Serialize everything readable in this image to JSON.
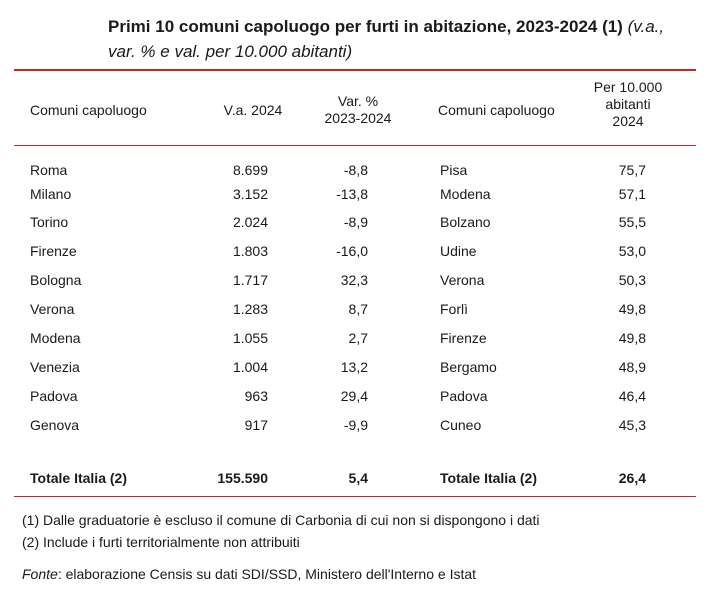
{
  "title": {
    "bold_text": "Primi 10 comuni capoluogo per furti in abitazione, 2023-2024 (1)",
    "italic_line1": " (v.a.,",
    "italic_line2": "var. % e val. per 10.000 abitanti)"
  },
  "headers": {
    "col1": "Comuni capoluogo",
    "col2": "V.a. 2024",
    "col3_line1": "Var. %",
    "col3_line2": "2023-2024",
    "col4": "Comuni capoluogo",
    "col5_line1": "Per 10.000",
    "col5_line2": "abitanti",
    "col5_line3": "2024"
  },
  "rows": [
    {
      "city": "Roma",
      "va": "8.699",
      "var": "-8,8",
      "city2": "Pisa",
      "per10k": "75,7"
    },
    {
      "city": "Milano",
      "va": "3.152",
      "var": "-13,8",
      "city2": "Modena",
      "per10k": "57,1"
    },
    {
      "city": "Torino",
      "va": "2.024",
      "var": "-8,9",
      "city2": "Bolzano",
      "per10k": "55,5"
    },
    {
      "city": "Firenze",
      "va": "1.803",
      "var": "-16,0",
      "city2": "Udine",
      "per10k": "53,0"
    },
    {
      "city": "Bologna",
      "va": "1.717",
      "var": "32,3",
      "city2": "Verona",
      "per10k": "50,3"
    },
    {
      "city": "Verona",
      "va": "1.283",
      "var": "8,7",
      "city2": "Forlì",
      "per10k": "49,8"
    },
    {
      "city": "Modena",
      "va": "1.055",
      "var": "2,7",
      "city2": "Firenze",
      "per10k": "49,8"
    },
    {
      "city": "Venezia",
      "va": "1.004",
      "var": "13,2",
      "city2": "Bergamo",
      "per10k": "48,9"
    },
    {
      "city": "Padova",
      "va": "963",
      "var": "29,4",
      "city2": "Padova",
      "per10k": "46,4"
    },
    {
      "city": "Genova",
      "va": "917",
      "var": "-9,9",
      "city2": "Cuneo",
      "per10k": "45,3"
    }
  ],
  "total": {
    "label": "Totale Italia (2)",
    "va": "155.590",
    "var": "5,4",
    "label2": "Totale Italia (2)",
    "per10k": "26,4"
  },
  "notes": {
    "note1": "(1) Dalle graduatorie è escluso il comune di Carbonia di cui non si dispongono i dati",
    "note2": "(2) Include i furti territorialmente non attribuiti",
    "source_label": "Fonte",
    "source_text": ": elaborazione Censis su dati SDI/SSD, Ministero dell'Interno e Istat"
  },
  "colors": {
    "rule": "#c0272d",
    "text": "#1a1a1a"
  }
}
